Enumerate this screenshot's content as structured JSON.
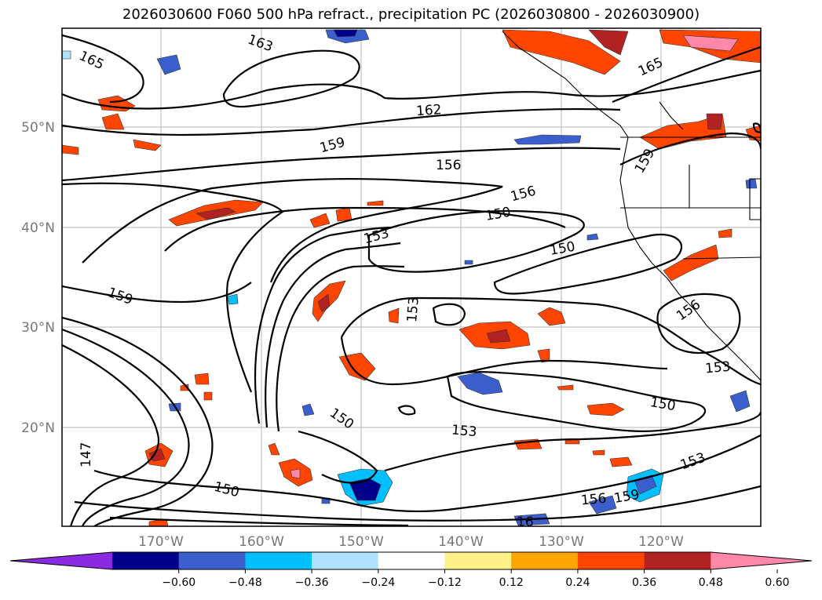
{
  "title": "2026030600 F060 500 hPa refract., precipitation PC (2026030800 - 2026030900)",
  "map": {
    "lat_labels": [
      "50°N",
      "40°N",
      "30°N",
      "20°N"
    ],
    "lon_labels": [
      "170°W",
      "160°W",
      "150°W",
      "140°W",
      "130°W",
      "120°W"
    ]
  },
  "contour_labels": [
    "165",
    "165",
    "163",
    "162",
    "159",
    "159",
    "159",
    "156",
    "156",
    "156",
    "153",
    "153",
    "153",
    "153",
    "153",
    "150",
    "150",
    "150",
    "150",
    "150",
    "147",
    "156",
    "159",
    "16"
  ],
  "colorbar": {
    "ticks": [
      "−0.60",
      "−0.48",
      "−0.36",
      "−0.24",
      "−0.12",
      "0.12",
      "0.24",
      "0.36",
      "0.48",
      "0.60"
    ],
    "colors": [
      "#8a2be2",
      "#00008b",
      "#3a5fcd",
      "#00bfff",
      "#b0e2ff",
      "#ffffff",
      "#fff08a",
      "#ffa500",
      "#ff4500",
      "#b22222",
      "#ff88aa"
    ]
  }
}
